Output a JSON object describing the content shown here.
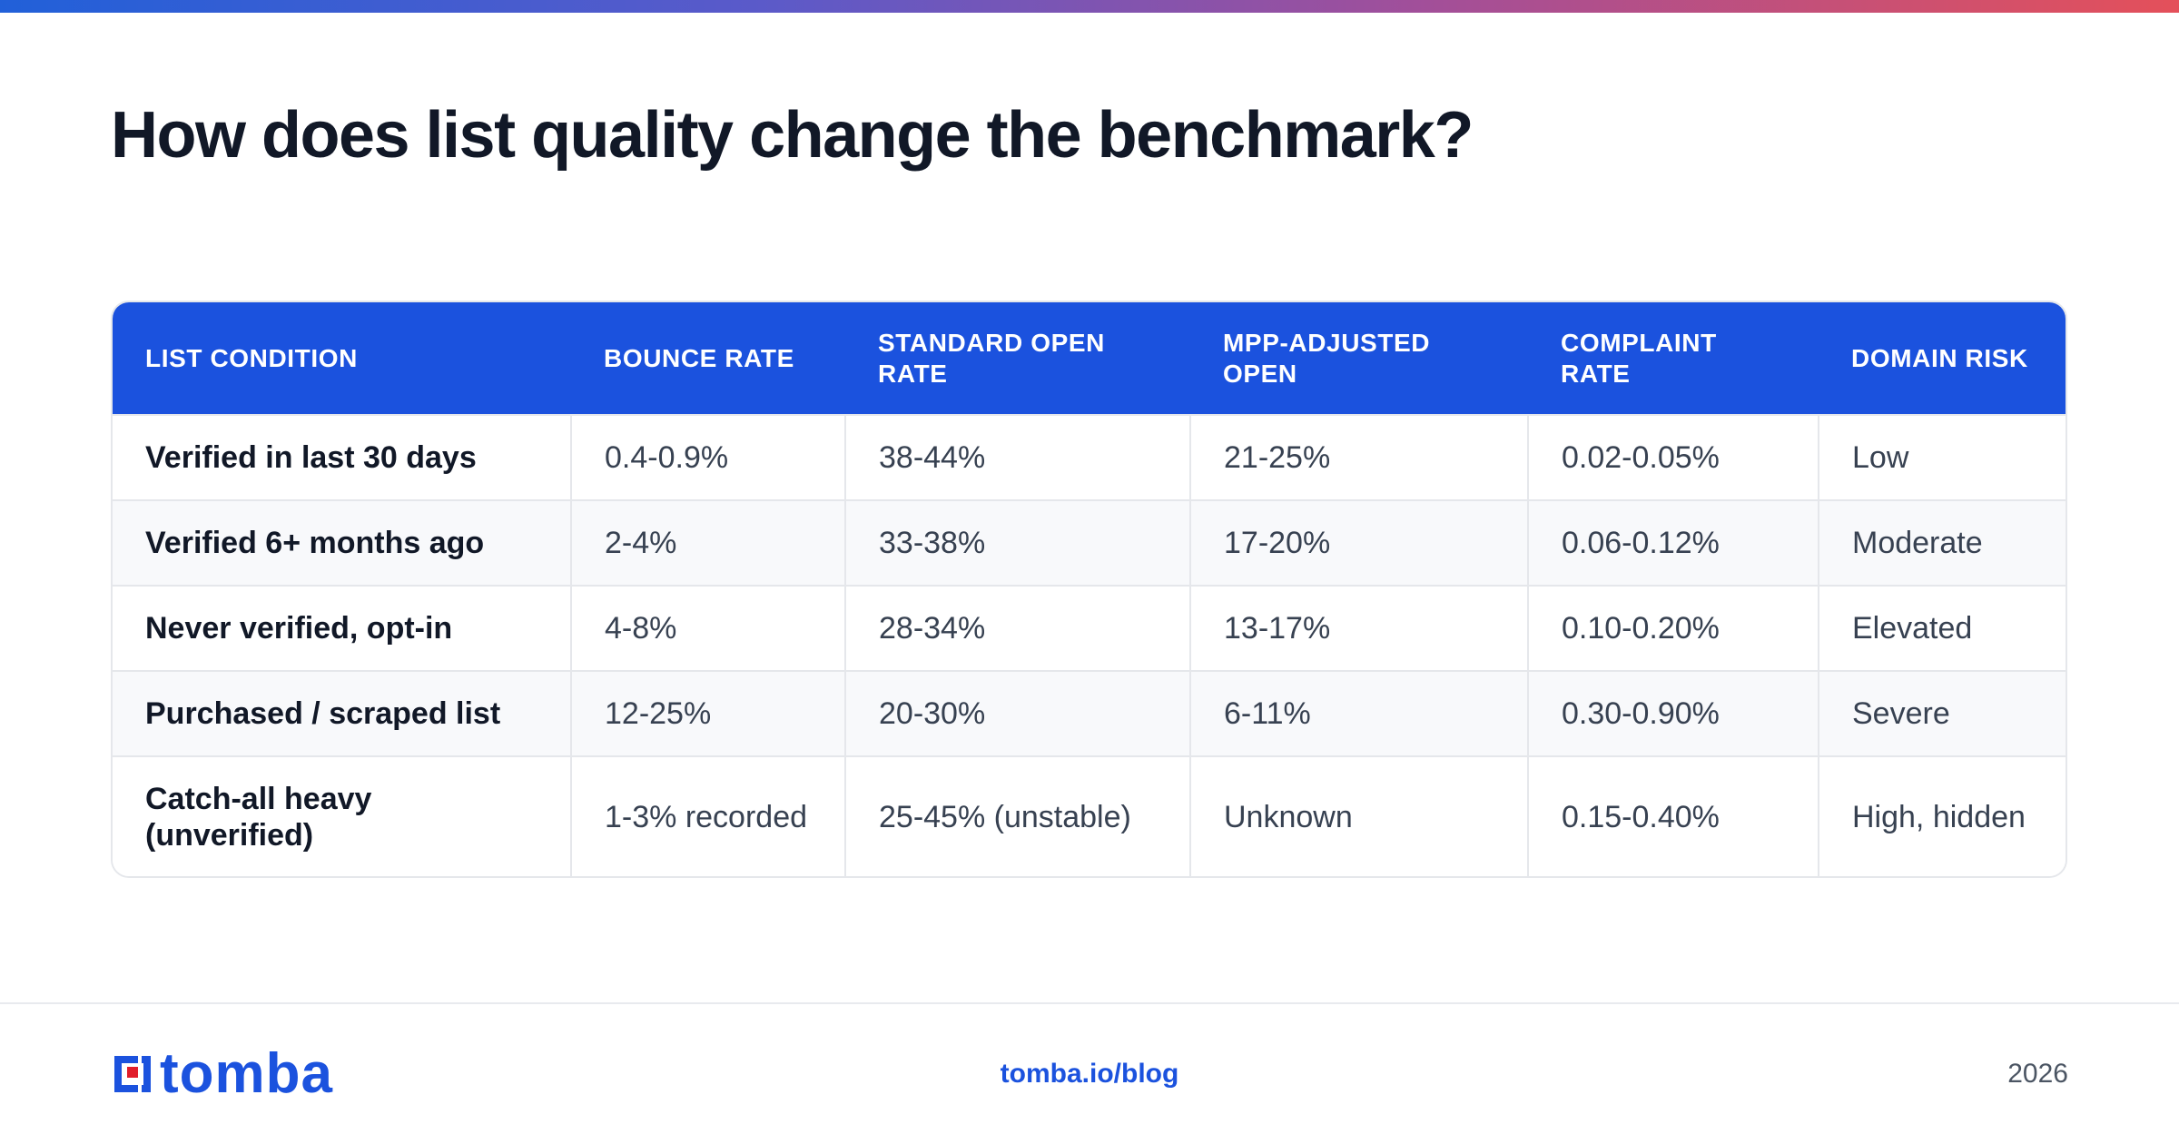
{
  "header": {
    "title": "How does list quality change the benchmark?"
  },
  "table": {
    "columns": [
      "LIST CONDITION",
      "BOUNCE RATE",
      "STANDARD OPEN RATE",
      "MPP-ADJUSTED OPEN",
      "COMPLAINT RATE",
      "DOMAIN RISK"
    ],
    "rows": [
      [
        "Verified in last 30 days",
        "0.4-0.9%",
        "38-44%",
        "21-25%",
        "0.02-0.05%",
        "Low"
      ],
      [
        "Verified 6+ months ago",
        "2-4%",
        "33-38%",
        "17-20%",
        "0.06-0.12%",
        "Moderate"
      ],
      [
        "Never verified, opt-in",
        "4-8%",
        "28-34%",
        "13-17%",
        "0.10-0.20%",
        "Elevated"
      ],
      [
        "Purchased / scraped list",
        "12-25%",
        "20-30%",
        "6-11%",
        "0.30-0.90%",
        "Severe"
      ],
      [
        "Catch-all heavy (unverified)",
        "1-3% recorded",
        "25-45% (unstable)",
        "Unknown",
        "0.15-0.40%",
        "High, hidden"
      ]
    ]
  },
  "footer": {
    "logo_text": "tomba",
    "logo_icon": "tomba-logo-mark",
    "link": "tomba.io/blog",
    "year": "2026"
  },
  "colors": {
    "accent": "#1b52de",
    "logo_red": "#e11d2a",
    "gradient": [
      "#2160d9",
      "#5b5ac9",
      "#a14f9a",
      "#e4505a"
    ]
  }
}
